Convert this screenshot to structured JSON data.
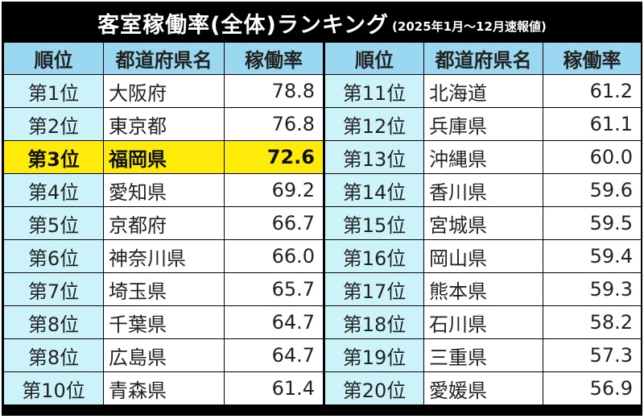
{
  "title": {
    "main": "客室稼働率(全体)ランキング",
    "sub": "(2025年1月～12月速報値)"
  },
  "headers": [
    "順位",
    "都道府県名",
    "稼働率",
    "順位",
    "都道府県名",
    "稼働率"
  ],
  "rows": [
    {
      "l": {
        "rank": "第1位",
        "pref": "大阪府",
        "rate": "78.8"
      },
      "r": {
        "rank": "第11位",
        "pref": "北海道",
        "rate": "61.2"
      }
    },
    {
      "l": {
        "rank": "第2位",
        "pref": "東京都",
        "rate": "76.8"
      },
      "r": {
        "rank": "第12位",
        "pref": "兵庫県",
        "rate": "61.1"
      }
    },
    {
      "l": {
        "rank": "第3位",
        "pref": "福岡県",
        "rate": "72.6"
      },
      "r": {
        "rank": "第13位",
        "pref": "沖縄県",
        "rate": "60.0"
      }
    },
    {
      "l": {
        "rank": "第4位",
        "pref": "愛知県",
        "rate": "69.2"
      },
      "r": {
        "rank": "第14位",
        "pref": "香川県",
        "rate": "59.6"
      }
    },
    {
      "l": {
        "rank": "第5位",
        "pref": "京都府",
        "rate": "66.7"
      },
      "r": {
        "rank": "第15位",
        "pref": "宮城県",
        "rate": "59.5"
      }
    },
    {
      "l": {
        "rank": "第6位",
        "pref": "神奈川県",
        "rate": "66.0"
      },
      "r": {
        "rank": "第16位",
        "pref": "岡山県",
        "rate": "59.4"
      }
    },
    {
      "l": {
        "rank": "第7位",
        "pref": "埼玉県",
        "rate": "65.7"
      },
      "r": {
        "rank": "第17位",
        "pref": "熊本県",
        "rate": "59.3"
      }
    },
    {
      "l": {
        "rank": "第8位",
        "pref": "千葉県",
        "rate": "64.7"
      },
      "r": {
        "rank": "第18位",
        "pref": "石川県",
        "rate": "58.2"
      }
    },
    {
      "l": {
        "rank": "第8位",
        "pref": "広島県",
        "rate": "64.7"
      },
      "r": {
        "rank": "第19位",
        "pref": "三重県",
        "rate": "57.3"
      }
    },
    {
      "l": {
        "rank": "第10位",
        "pref": "青森県",
        "rate": "61.4"
      },
      "r": {
        "rank": "第20位",
        "pref": "愛媛県",
        "rate": "56.9"
      }
    }
  ],
  "highlight_row": 2,
  "colors": {
    "header_bg": "#99d8f0",
    "rank_bg": "#ccf3f9",
    "highlight": "#ffeb0a",
    "title_bg": "#000000"
  }
}
